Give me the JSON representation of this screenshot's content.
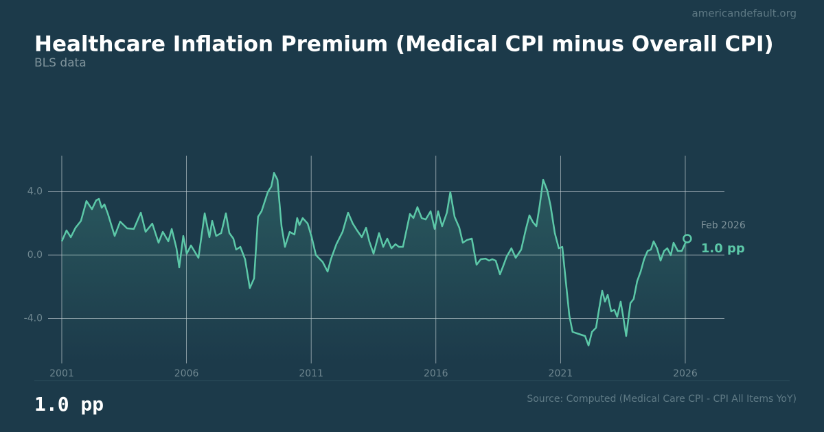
{
  "site": "americandefault.org",
  "chart_data": {
    "type": "line",
    "title": "Healthcare Inflation Premium (Medical CPI minus Overall CPI)",
    "subtitle": "BLS data",
    "source": "Source: Computed (Medical Care CPI - CPI All Items YoY)",
    "headline": "1.0 pp",
    "annotation": {
      "date": "Feb 2026",
      "label": "1.0 pp"
    },
    "color": "#5cc8a8",
    "grid": true,
    "xlim": [
      2000.45,
      2027.57
    ],
    "ylim": [
      -6.84,
      6.28
    ],
    "xticks": [
      2001,
      2006,
      2011,
      2016,
      2021,
      2026
    ],
    "yticks": [
      {
        "value": 4,
        "label": "4.0"
      },
      {
        "value": 0,
        "label": "0.0"
      },
      {
        "value": -4,
        "label": "-4.0"
      }
    ],
    "x": [
      2001.0,
      2001.19,
      2001.36,
      2001.55,
      2001.77,
      2001.99,
      2002.21,
      2002.38,
      2002.49,
      2002.6,
      2002.71,
      2002.85,
      2003.12,
      2003.34,
      2003.62,
      2003.89,
      2004.17,
      2004.36,
      2004.63,
      2004.88,
      2005.05,
      2005.27,
      2005.41,
      2005.6,
      2005.71,
      2005.87,
      2006.01,
      2006.18,
      2006.48,
      2006.73,
      2006.92,
      2007.03,
      2007.19,
      2007.39,
      2007.58,
      2007.72,
      2007.88,
      2007.99,
      2008.16,
      2008.35,
      2008.54,
      2008.71,
      2008.87,
      2009.01,
      2009.26,
      2009.4,
      2009.51,
      2009.65,
      2009.81,
      2009.95,
      2010.14,
      2010.33,
      2010.44,
      2010.53,
      2010.66,
      2010.86,
      2011.02,
      2011.19,
      2011.46,
      2011.66,
      2011.79,
      2012.01,
      2012.26,
      2012.48,
      2012.67,
      2012.84,
      2013.03,
      2013.2,
      2013.33,
      2013.5,
      2013.72,
      2013.89,
      2014.05,
      2014.22,
      2014.38,
      2014.52,
      2014.68,
      2014.96,
      2015.1,
      2015.26,
      2015.43,
      2015.59,
      2015.79,
      2015.95,
      2016.09,
      2016.25,
      2016.44,
      2016.58,
      2016.75,
      2016.94,
      2017.08,
      2017.24,
      2017.44,
      2017.63,
      2017.8,
      2017.99,
      2018.13,
      2018.26,
      2018.4,
      2018.57,
      2018.7,
      2018.84,
      2019.03,
      2019.2,
      2019.42,
      2019.61,
      2019.75,
      2019.89,
      2020.03,
      2020.16,
      2020.3,
      2020.47,
      2020.6,
      2020.77,
      2020.93,
      2021.07,
      2021.21,
      2021.35,
      2021.48,
      2021.65,
      2021.81,
      2021.98,
      2022.12,
      2022.26,
      2022.42,
      2022.53,
      2022.67,
      2022.78,
      2022.89,
      2023.03,
      2023.16,
      2023.27,
      2023.41,
      2023.52,
      2023.63,
      2023.8,
      2023.93,
      2024.07,
      2024.21,
      2024.35,
      2024.49,
      2024.62,
      2024.73,
      2024.87,
      2025.01,
      2025.15,
      2025.28,
      2025.42,
      2025.53,
      2025.7,
      2025.86,
      2026.08
    ],
    "series": [
      {
        "name": "Medical CPI minus Overall CPI",
        "color": "#5cc8a8",
        "values": [
          0.87,
          1.56,
          1.13,
          1.73,
          2.16,
          3.42,
          2.9,
          3.46,
          3.55,
          2.99,
          3.2,
          2.6,
          1.21,
          2.12,
          1.69,
          1.65,
          2.68,
          1.47,
          1.99,
          0.78,
          1.47,
          0.87,
          1.65,
          0.43,
          -0.78,
          1.21,
          0.09,
          0.61,
          -0.17,
          2.64,
          1.13,
          2.16,
          1.21,
          1.39,
          2.64,
          1.39,
          1.04,
          0.35,
          0.52,
          -0.26,
          -2.08,
          -1.47,
          2.42,
          2.77,
          3.98,
          4.33,
          5.19,
          4.76,
          1.82,
          0.52,
          1.47,
          1.3,
          2.34,
          1.9,
          2.34,
          1.99,
          1.13,
          0,
          -0.43,
          -1.04,
          -0.26,
          0.69,
          1.47,
          2.68,
          1.99,
          1.56,
          1.13,
          1.73,
          0.87,
          0.09,
          1.39,
          0.52,
          1.04,
          0.43,
          0.69,
          0.52,
          0.52,
          2.6,
          2.34,
          3.03,
          2.34,
          2.25,
          2.77,
          1.65,
          2.77,
          1.82,
          2.68,
          3.98,
          2.42,
          1.73,
          0.78,
          0.95,
          1.04,
          -0.61,
          -0.26,
          -0.22,
          -0.35,
          -0.26,
          -0.35,
          -1.21,
          -0.69,
          -0.09,
          0.43,
          -0.17,
          0.35,
          1.65,
          2.51,
          2.08,
          1.82,
          3.12,
          4.76,
          4.07,
          3.12,
          1.39,
          0.43,
          0.52,
          -1.65,
          -3.81,
          -4.85,
          -4.94,
          -5.02,
          -5.11,
          -5.71,
          -4.85,
          -4.59,
          -3.55,
          -2.25,
          -2.94,
          -2.51,
          -3.55,
          -3.46,
          -3.9,
          -2.94,
          -3.98,
          -5.11,
          -3.03,
          -2.77,
          -1.65,
          -1.04,
          -0.26,
          0.26,
          0.35,
          0.87,
          0.43,
          -0.35,
          0.26,
          0.43,
          0,
          0.78,
          0.26,
          0.26,
          1.04
        ]
      }
    ]
  }
}
